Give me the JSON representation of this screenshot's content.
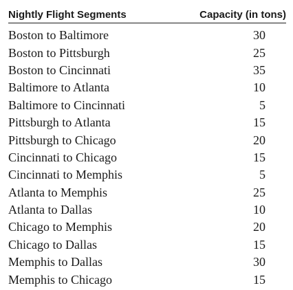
{
  "table": {
    "headers": {
      "segment": "Nightly Flight Segments",
      "capacity": "Capacity (in tons)"
    },
    "rows": [
      {
        "segment": "Boston to Baltimore",
        "capacity": "30"
      },
      {
        "segment": "Boston to Pittsburgh",
        "capacity": "25"
      },
      {
        "segment": "Boston to Cincinnati",
        "capacity": "35"
      },
      {
        "segment": "Baltimore to Atlanta",
        "capacity": "10"
      },
      {
        "segment": "Baltimore to Cincinnati",
        "capacity": "5"
      },
      {
        "segment": "Pittsburgh to Atlanta",
        "capacity": "15"
      },
      {
        "segment": "Pittsburgh to Chicago",
        "capacity": "20"
      },
      {
        "segment": "Cincinnati to Chicago",
        "capacity": "15"
      },
      {
        "segment": "Cincinnati to Memphis",
        "capacity": "5"
      },
      {
        "segment": "Atlanta to Memphis",
        "capacity": "25"
      },
      {
        "segment": "Atlanta to Dallas",
        "capacity": "10"
      },
      {
        "segment": "Chicago to Memphis",
        "capacity": "20"
      },
      {
        "segment": "Chicago to Dallas",
        "capacity": "15"
      },
      {
        "segment": "Memphis to Dallas",
        "capacity": "30"
      },
      {
        "segment": "Memphis to Chicago",
        "capacity": "15"
      }
    ]
  }
}
